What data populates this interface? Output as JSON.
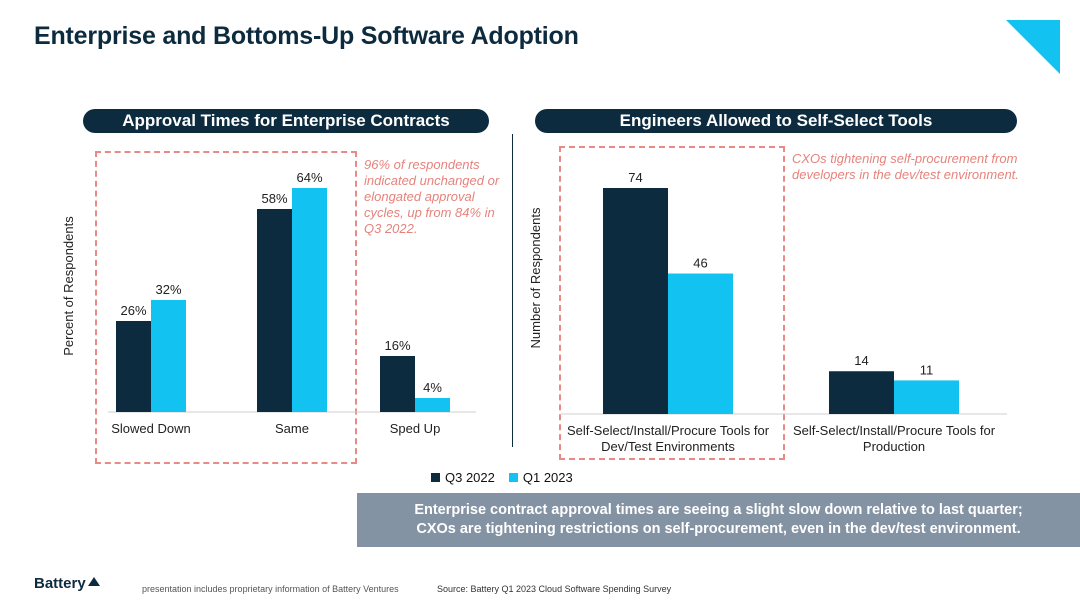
{
  "title": "Enterprise and Bottoms-Up Software Adoption",
  "colors": {
    "navy": "#0d2b3e",
    "cyan": "#12c3f2",
    "dashed": "#e88a86",
    "callout_bg": "#8493a3"
  },
  "left_panel": {
    "heading": "Approval Times for Enterprise Contracts",
    "note": "96% of respondents indicated unchanged or elongated approval cycles, up from 84% in Q3 2022."
  },
  "right_panel": {
    "heading": "Engineers Allowed to Self-Select Tools",
    "note": "CXOs tightening self-procurement from developers in the dev/test environment."
  },
  "chart_data": [
    {
      "type": "bar",
      "title": "Approval Times for Enterprise Contracts",
      "ylabel": "Percent of Respondents",
      "xlabel": "",
      "categories": [
        "Slowed Down",
        "Same",
        "Sped Up"
      ],
      "series": [
        {
          "name": "Q3 2022",
          "values": [
            26,
            58,
            16
          ],
          "labels": [
            "26%",
            "58%",
            "16%"
          ]
        },
        {
          "name": "Q1 2023",
          "values": [
            32,
            64,
            4
          ],
          "labels": [
            "32%",
            "64%",
            "4%"
          ]
        }
      ],
      "ylim": [
        0,
        64
      ],
      "grid": false
    },
    {
      "type": "bar",
      "title": "Engineers Allowed to Self-Select Tools",
      "ylabel": "Number of Respondents",
      "xlabel": "",
      "categories": [
        [
          "Self-Select/Install/Procure Tools for",
          "Dev/Test Environments"
        ],
        [
          "Self-Select/Install/Procure Tools for",
          "Production"
        ]
      ],
      "series": [
        {
          "name": "Q3 2022",
          "values": [
            74,
            14
          ],
          "labels": [
            "74",
            "14"
          ]
        },
        {
          "name": "Q1 2023",
          "values": [
            46,
            11
          ],
          "labels": [
            "46",
            "11"
          ]
        }
      ],
      "ylim": [
        0,
        74
      ],
      "grid": false
    }
  ],
  "legend": {
    "q3": "Q3 2022",
    "q1": "Q1 2023",
    "placement": "bottom-center"
  },
  "callout": {
    "line1": "Enterprise contract approval times are seeing a slight slow down relative to last quarter;",
    "line2": "CXOs are tightening restrictions on self-procurement, even in the dev/test environment."
  },
  "footer": {
    "logo": "Battery",
    "disclaimer": "presentation includes proprietary information of Battery Ventures",
    "source": "Source: Battery Q1 2023 Cloud Software Spending Survey"
  }
}
